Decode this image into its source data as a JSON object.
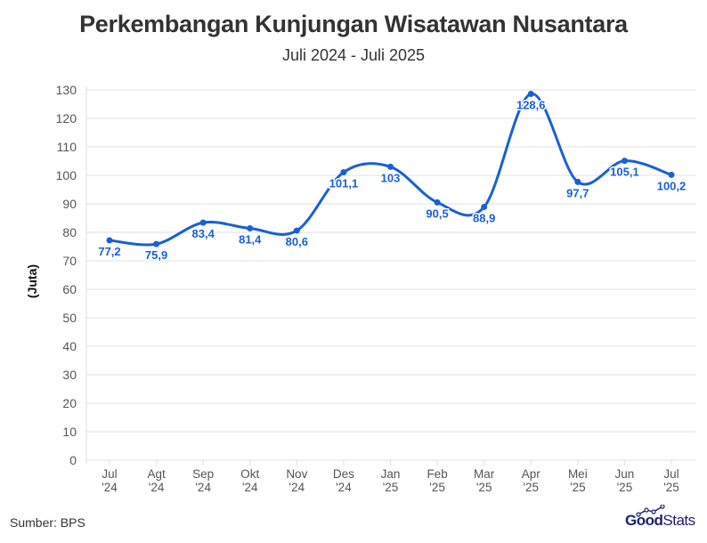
{
  "header": {
    "title": "Perkembangan Kunjungan Wisatawan Nusantara",
    "subtitle": "Juli 2024 - Juli 2025"
  },
  "footer": {
    "source": "Sumber: BPS",
    "logo_part1": "Good",
    "logo_part2": "Stats"
  },
  "colors": {
    "line": "#1a5fd6",
    "label": "#1a5fd6",
    "grid": "#e6e6e6",
    "axis_text": "#555555",
    "title": "#333333"
  },
  "chart_data": {
    "type": "line",
    "title": "Perkembangan Kunjungan Wisatawan Nusantara",
    "subtitle": "Juli 2024 - Juli 2025",
    "xlabel": "",
    "ylabel": "(Juta)",
    "categories": [
      "Jul '24",
      "Agt '24",
      "Sep '24",
      "Okt '24",
      "Nov '24",
      "Des '24",
      "Jan '25",
      "Feb '25",
      "Mar '25",
      "Apr '25",
      "Mei '25",
      "Jun '25",
      "Jul '25"
    ],
    "category_lines": [
      [
        "Jul",
        "'24"
      ],
      [
        "Agt",
        "'24"
      ],
      [
        "Sep",
        "'24"
      ],
      [
        "Okt",
        "'24"
      ],
      [
        "Nov",
        "'24"
      ],
      [
        "Des",
        "'24"
      ],
      [
        "Jan",
        "'25"
      ],
      [
        "Feb",
        "'25"
      ],
      [
        "Mar",
        "'25"
      ],
      [
        "Apr",
        "'25"
      ],
      [
        "Mei",
        "'25"
      ],
      [
        "Jun",
        "'25"
      ],
      [
        "Jul",
        "'25"
      ]
    ],
    "values": [
      77.2,
      75.9,
      83.4,
      81.4,
      80.6,
      101.1,
      103,
      90.5,
      88.9,
      128.6,
      97.7,
      105.1,
      100.2
    ],
    "value_labels": [
      "77,2",
      "75,9",
      "83,4",
      "81,4",
      "80,6",
      "101,1",
      "103",
      "90,5",
      "88,9",
      "128,6",
      "97,7",
      "105,1",
      "100,2"
    ],
    "ylim": [
      0,
      130
    ],
    "yticks": [
      0,
      10,
      20,
      30,
      40,
      50,
      60,
      70,
      80,
      90,
      100,
      110,
      120,
      130
    ],
    "grid": true,
    "legend": null,
    "source": "Sumber: BPS"
  }
}
